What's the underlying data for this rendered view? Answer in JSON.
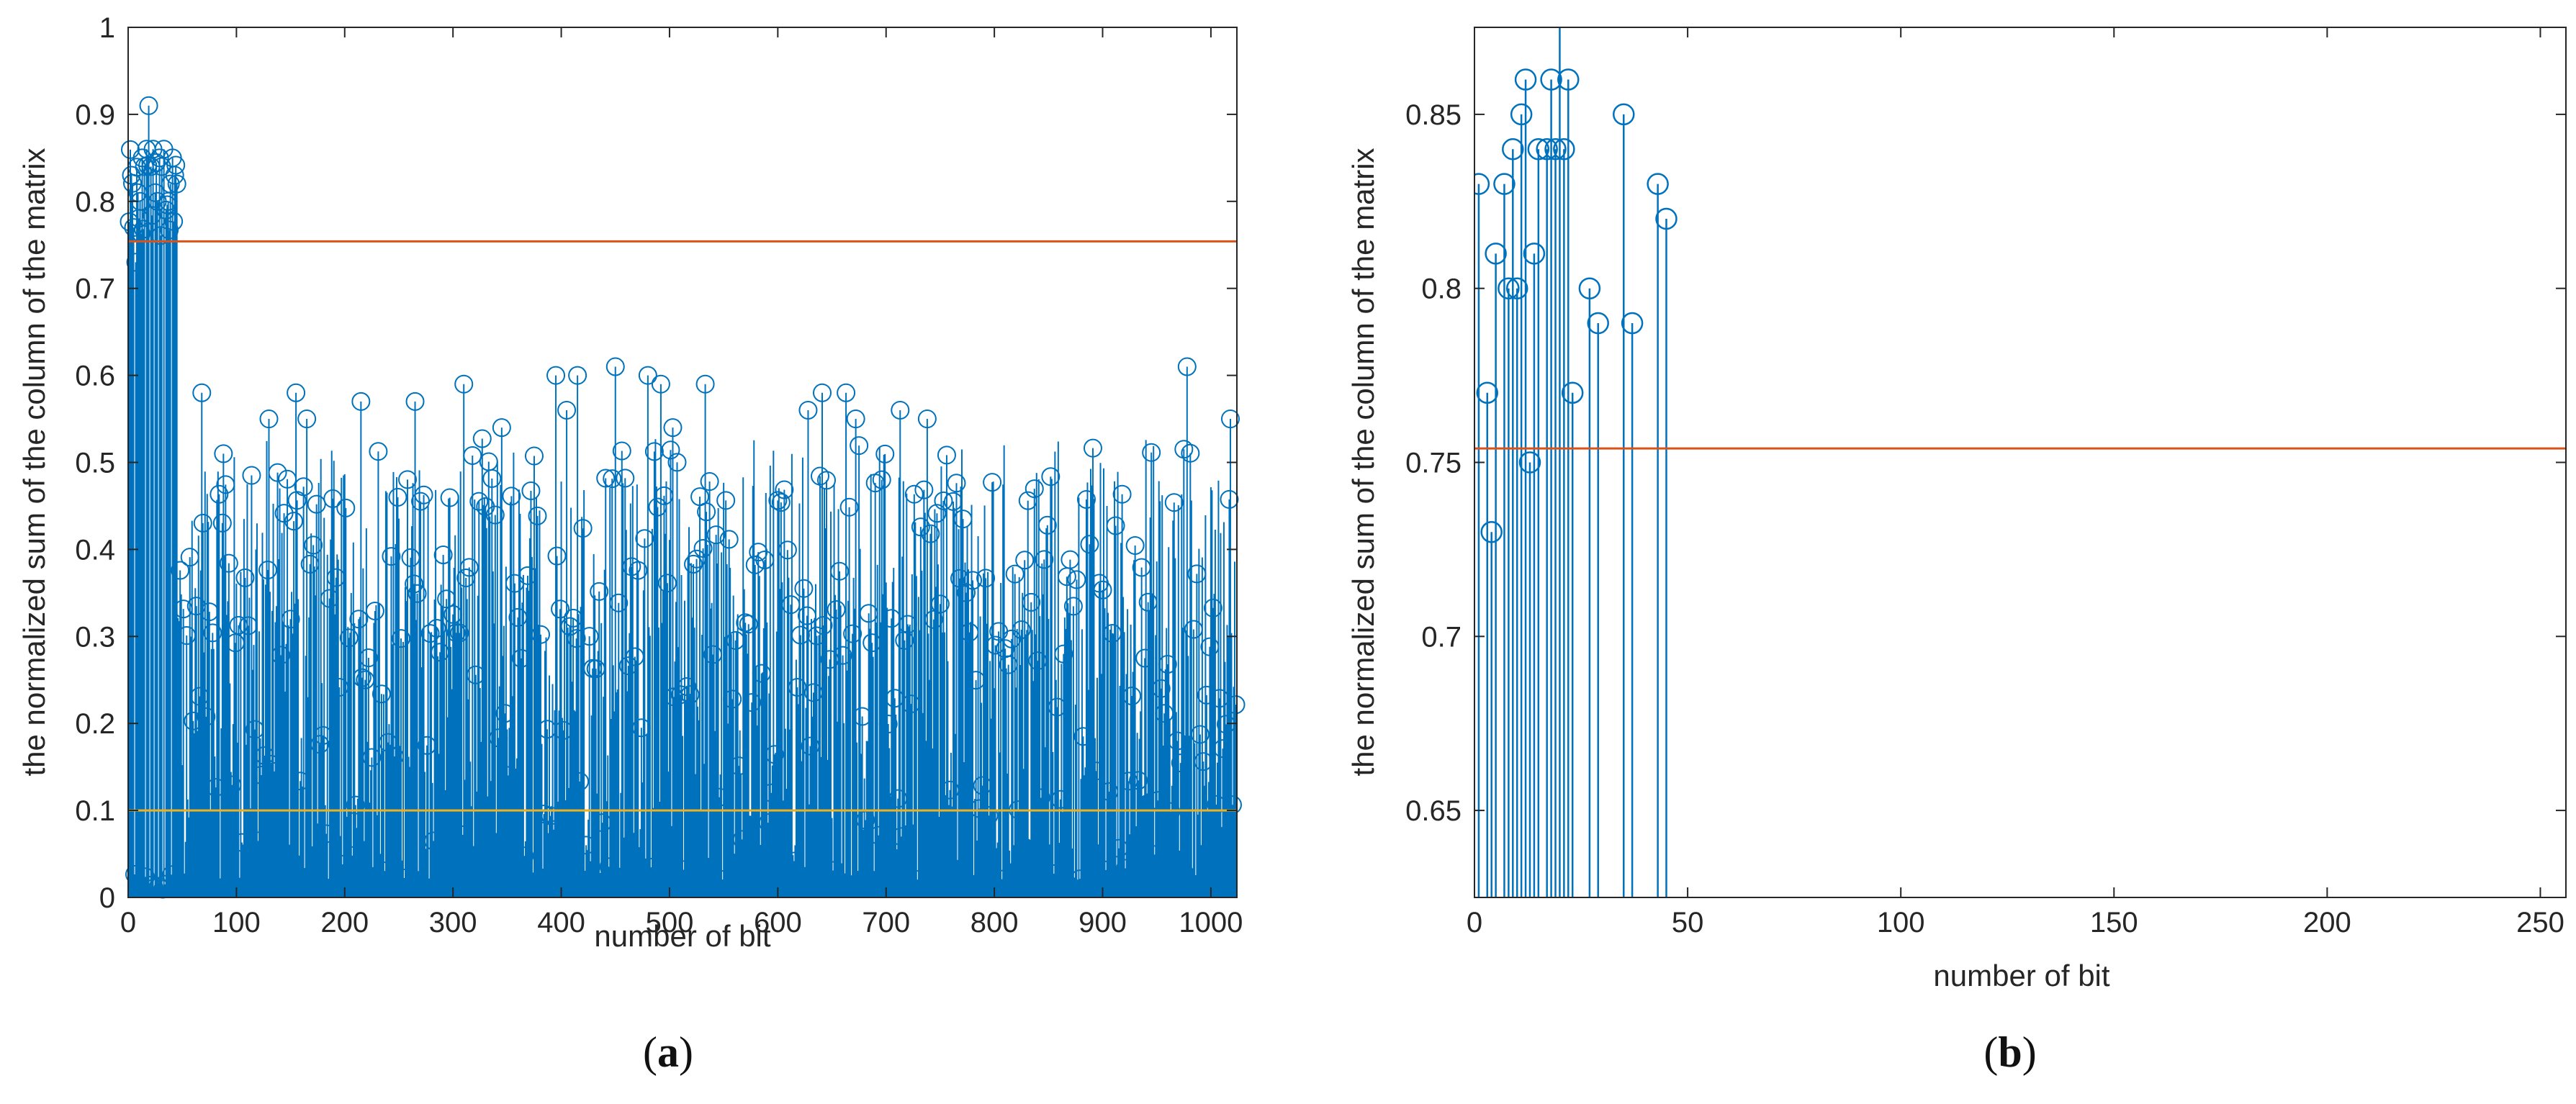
{
  "colors": {
    "stem": "#0072BD",
    "threshold_upper": "#D95319",
    "threshold_lower": "#EDB120",
    "axis": "#262626"
  },
  "panels": [
    {
      "caption": "(a)",
      "caption_bold": "a",
      "xlabel": "number of bit",
      "ylabel": "the normalized sum of the column of the matrix"
    },
    {
      "caption": "(b)",
      "caption_bold": "b",
      "xlabel": "number of bit",
      "ylabel": "the normalized sum of the column of the matrix"
    }
  ],
  "chart_data": [
    {
      "type": "stem",
      "xlabel": "number of bit",
      "ylabel": "the normalized sum of the column of the matrix",
      "xlim": [
        0,
        1024
      ],
      "ylim": [
        0,
        1
      ],
      "xticks": [
        0,
        100,
        200,
        300,
        400,
        500,
        600,
        700,
        800,
        900,
        1000
      ],
      "yticks": [
        0,
        0.1,
        0.2,
        0.3,
        0.4,
        0.5,
        0.6,
        0.7,
        0.8,
        0.9,
        1
      ],
      "hlines": [
        {
          "y": 0.754,
          "color": "#D95319"
        },
        {
          "y": 0.1,
          "color": "#EDB120"
        }
      ],
      "notes": "1024 stems; bits 1-45 lie near 0.73-0.91 or near 0; remaining bits mostly 0-0.5, with a few peaks up to ~0.61",
      "highlighted_points": {
        "x": [
          3,
          5,
          7,
          9,
          11,
          13,
          15,
          17,
          19,
          21,
          23,
          25,
          27,
          29,
          31,
          33,
          35,
          37,
          39,
          41,
          43,
          45,
          68,
          88,
          130,
          155,
          165,
          215,
          265,
          310,
          345,
          395,
          405,
          415,
          450,
          480,
          492,
          503,
          533,
          628,
          641,
          663,
          672,
          713,
          738,
          978,
          1018
        ],
        "y": [
          0.83,
          0.77,
          0.73,
          0.81,
          0.8,
          0.85,
          0.84,
          0.86,
          0.91,
          0.84,
          0.86,
          0.81,
          0.8,
          0.85,
          0.84,
          0.86,
          0.79,
          0.8,
          0.82,
          0.85,
          0.83,
          0.82,
          0.58,
          0.51,
          0.55,
          0.58,
          0.55,
          0.57,
          0.57,
          0.59,
          0.54,
          0.6,
          0.56,
          0.6,
          0.61,
          0.6,
          0.59,
          0.54,
          0.59,
          0.56,
          0.58,
          0.58,
          0.55,
          0.56,
          0.55,
          0.61,
          0.55
        ]
      }
    },
    {
      "type": "stem",
      "xlabel": "number of bit",
      "ylabel": "the normalized sum of the column of the matrix",
      "xlim": [
        0,
        256
      ],
      "ylim": [
        0.625,
        0.875
      ],
      "xticks": [
        0,
        50,
        100,
        150,
        200,
        250
      ],
      "yticks": [
        0.65,
        0.7,
        0.75,
        0.8,
        0.85
      ],
      "hlines": [
        {
          "y": 0.754,
          "color": "#D95319"
        }
      ],
      "x": [
        1,
        3,
        4,
        5,
        7,
        8,
        9,
        10,
        11,
        12,
        13,
        14,
        15,
        17,
        18,
        19,
        20,
        21,
        22,
        23,
        27,
        29,
        35,
        37,
        43,
        45
      ],
      "y": [
        0.83,
        0.77,
        0.73,
        0.81,
        0.83,
        0.8,
        0.84,
        0.8,
        0.85,
        0.86,
        0.75,
        0.81,
        0.84,
        0.84,
        0.86,
        0.84,
        0.91,
        0.84,
        0.86,
        0.77,
        0.8,
        0.79,
        0.85,
        0.79,
        0.83,
        0.82
      ]
    }
  ]
}
